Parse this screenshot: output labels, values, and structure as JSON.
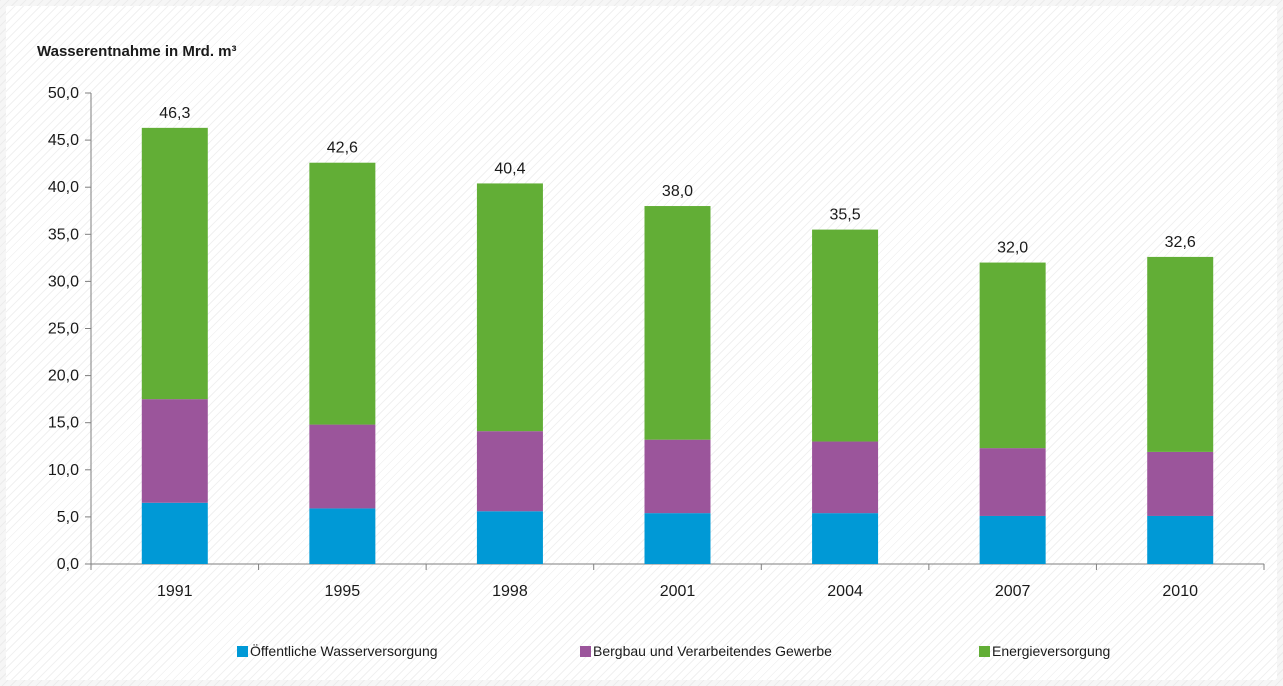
{
  "chart_data": {
    "type": "bar",
    "stacked": true,
    "title": "Wasserentnahme in Mrd. m³",
    "categories": [
      "1991",
      "1995",
      "1998",
      "2001",
      "2004",
      "2007",
      "2010"
    ],
    "series": [
      {
        "name": "Öffentliche Wasserversorgung",
        "color": "#0099d6",
        "values": [
          6.5,
          5.9,
          5.6,
          5.4,
          5.4,
          5.1,
          5.1
        ]
      },
      {
        "name": "Bergbau und Verarbeitendes Gewerbe",
        "color": "#9b559b",
        "values": [
          11.0,
          8.9,
          8.5,
          7.8,
          7.6,
          7.2,
          6.8
        ]
      },
      {
        "name": "Energieversorgung",
        "color": "#62ae36",
        "values": [
          28.8,
          27.8,
          26.3,
          24.8,
          22.5,
          19.7,
          20.7
        ]
      }
    ],
    "totals": [
      "46,3",
      "42,6",
      "40,4",
      "38,0",
      "35,5",
      "32,0",
      "32,6"
    ],
    "y_ticks": [
      "0,0",
      "5,0",
      "10,0",
      "15,0",
      "20,0",
      "25,0",
      "30,0",
      "35,0",
      "40,0",
      "45,0",
      "50,0"
    ],
    "ylim": [
      0,
      50
    ],
    "legend_position": "bottom",
    "grid": false
  }
}
